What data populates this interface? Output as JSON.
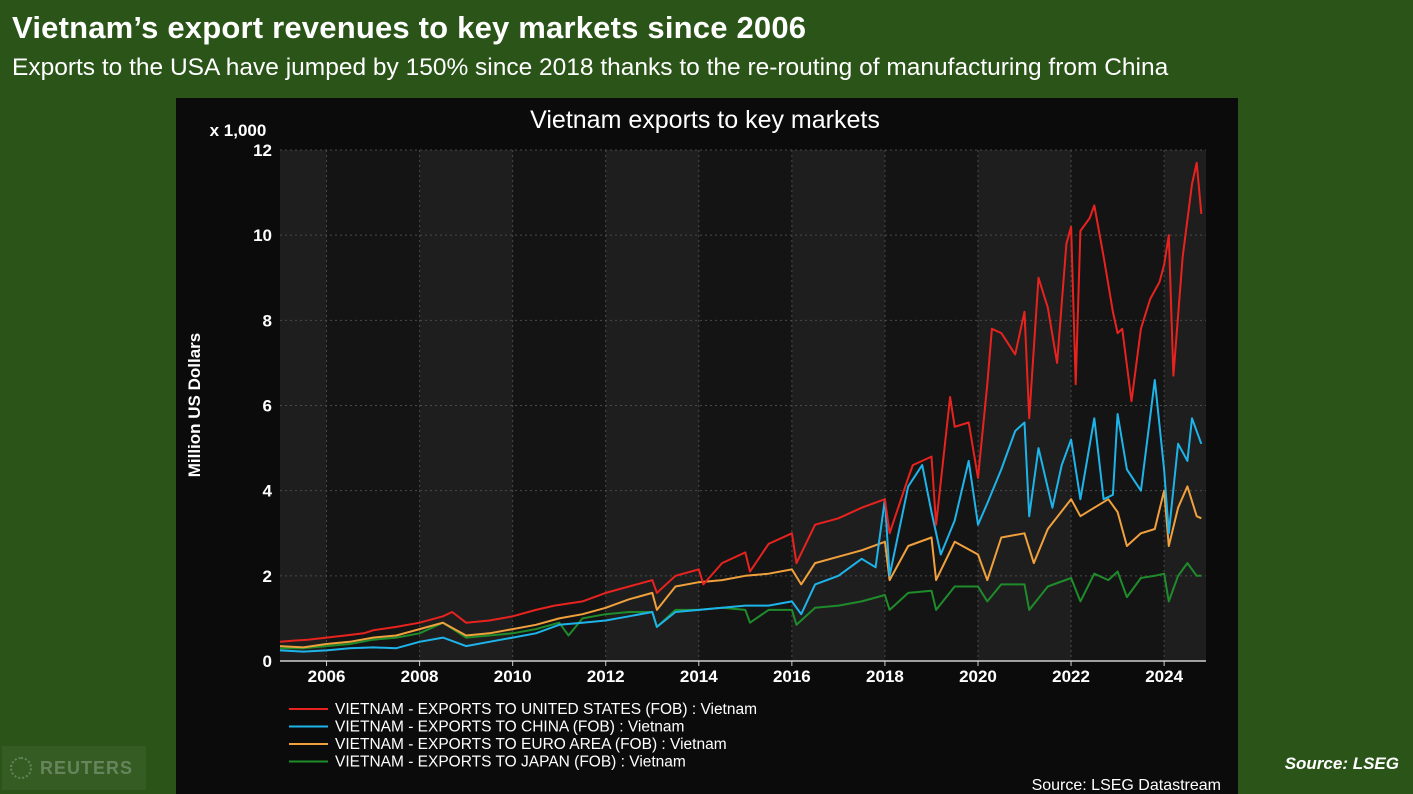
{
  "header": {
    "headline": "Vietnam’s export revenues to key markets since 2006",
    "subline": "Exports to the USA have jumped by 150% since 2018 thanks to the re-routing of manufacturing from China"
  },
  "footer": {
    "watermark": "REUTERS",
    "source": "Source: LSEG"
  },
  "chart_data": {
    "type": "line",
    "title": "Vietnam exports to key markets",
    "ylabel": "Million US Dollars",
    "y_multiplier_label": "x 1,000",
    "xlabel": "",
    "source_note": "Source: LSEG Datastream",
    "xlim": [
      2005.0,
      2024.9
    ],
    "ylim": [
      0,
      12
    ],
    "x_ticks": [
      2006,
      2008,
      2010,
      2012,
      2014,
      2016,
      2018,
      2020,
      2022,
      2024
    ],
    "x_tick_labels": [
      "2006",
      "2008",
      "2010",
      "2012",
      "2014",
      "2016",
      "2018",
      "2020",
      "2022",
      "2024"
    ],
    "y_ticks": [
      0,
      2,
      4,
      6,
      8,
      10,
      12
    ],
    "y_tick_labels": [
      "0",
      "2",
      "4",
      "6",
      "8",
      "10",
      "12"
    ],
    "grid": true,
    "legend_position": "bottom-left",
    "series": [
      {
        "name": "VIETNAM - EXPORTS TO UNITED STATES (FOB) : Vietnam",
        "color": "#e8231f",
        "x": [
          2005.0,
          2005.3,
          2005.6,
          2006.0,
          2006.4,
          2006.8,
          2007.0,
          2007.5,
          2008.0,
          2008.5,
          2008.7,
          2009.0,
          2009.5,
          2010.0,
          2010.5,
          2010.9,
          2011.5,
          2012.0,
          2012.5,
          2013.0,
          2013.1,
          2013.5,
          2014.0,
          2014.1,
          2014.5,
          2015.0,
          2015.1,
          2015.5,
          2016.0,
          2016.1,
          2016.5,
          2017.0,
          2017.5,
          2018.0,
          2018.1,
          2018.5,
          2018.6,
          2019.0,
          2019.1,
          2019.4,
          2019.5,
          2019.8,
          2020.0,
          2020.2,
          2020.3,
          2020.5,
          2020.8,
          2021.0,
          2021.1,
          2021.3,
          2021.5,
          2021.7,
          2021.9,
          2022.0,
          2022.1,
          2022.2,
          2022.4,
          2022.5,
          2022.7,
          2022.9,
          2023.0,
          2023.1,
          2023.3,
          2023.5,
          2023.7,
          2023.9,
          2024.0,
          2024.1,
          2024.2,
          2024.4,
          2024.6,
          2024.7,
          2024.8
        ],
        "values": [
          0.45,
          0.48,
          0.5,
          0.55,
          0.6,
          0.65,
          0.72,
          0.8,
          0.9,
          1.05,
          1.15,
          0.9,
          0.95,
          1.05,
          1.2,
          1.3,
          1.4,
          1.6,
          1.75,
          1.9,
          1.6,
          2.0,
          2.15,
          1.8,
          2.3,
          2.55,
          2.1,
          2.75,
          3.0,
          2.3,
          3.2,
          3.35,
          3.6,
          3.8,
          3.0,
          4.3,
          4.6,
          4.8,
          3.2,
          6.2,
          5.5,
          5.6,
          4.3,
          6.5,
          7.8,
          7.7,
          7.2,
          8.2,
          5.7,
          9.0,
          8.3,
          7.0,
          9.8,
          10.2,
          6.5,
          10.1,
          10.4,
          10.7,
          9.5,
          8.2,
          7.7,
          7.8,
          6.1,
          7.8,
          8.5,
          8.9,
          9.3,
          10.0,
          6.7,
          9.5,
          11.2,
          11.7,
          10.5
        ]
      },
      {
        "name": "VIETNAM - EXPORTS TO CHINA (FOB) : Vietnam",
        "color": "#1eb4ea",
        "x": [
          2005.0,
          2005.5,
          2006.0,
          2006.5,
          2007.0,
          2007.5,
          2008.0,
          2008.5,
          2009.0,
          2009.5,
          2010.0,
          2010.5,
          2011.0,
          2011.5,
          2012.0,
          2012.5,
          2013.0,
          2013.1,
          2013.5,
          2014.0,
          2014.5,
          2015.0,
          2015.5,
          2016.0,
          2016.2,
          2016.5,
          2017.0,
          2017.5,
          2017.8,
          2018.0,
          2018.1,
          2018.5,
          2018.8,
          2019.0,
          2019.2,
          2019.5,
          2019.8,
          2020.0,
          2020.2,
          2020.5,
          2020.8,
          2021.0,
          2021.1,
          2021.3,
          2021.6,
          2021.8,
          2022.0,
          2022.2,
          2022.5,
          2022.7,
          2022.9,
          2023.0,
          2023.2,
          2023.5,
          2023.8,
          2024.0,
          2024.1,
          2024.3,
          2024.5,
          2024.6,
          2024.8
        ],
        "values": [
          0.25,
          0.22,
          0.25,
          0.3,
          0.32,
          0.3,
          0.45,
          0.55,
          0.35,
          0.45,
          0.55,
          0.65,
          0.85,
          0.9,
          0.95,
          1.05,
          1.15,
          0.8,
          1.15,
          1.2,
          1.25,
          1.3,
          1.3,
          1.4,
          1.1,
          1.8,
          2.0,
          2.4,
          2.2,
          3.8,
          2.0,
          4.1,
          4.6,
          3.5,
          2.5,
          3.3,
          4.7,
          3.2,
          3.7,
          4.5,
          5.4,
          5.6,
          3.4,
          5.0,
          3.6,
          4.6,
          5.2,
          3.8,
          5.7,
          3.8,
          3.9,
          5.8,
          4.5,
          4.0,
          6.6,
          4.5,
          3.0,
          5.1,
          4.7,
          5.7,
          5.1
        ]
      },
      {
        "name": "VIETNAM - EXPORTS TO EURO AREA (FOB) : Vietnam",
        "color": "#f0a03c",
        "x": [
          2005.0,
          2005.5,
          2006.0,
          2006.5,
          2007.0,
          2007.5,
          2008.0,
          2008.5,
          2009.0,
          2009.5,
          2010.0,
          2010.5,
          2011.0,
          2011.5,
          2012.0,
          2012.5,
          2013.0,
          2013.1,
          2013.5,
          2014.0,
          2014.5,
          2015.0,
          2015.5,
          2016.0,
          2016.2,
          2016.5,
          2017.0,
          2017.5,
          2018.0,
          2018.1,
          2018.5,
          2019.0,
          2019.1,
          2019.5,
          2020.0,
          2020.2,
          2020.5,
          2021.0,
          2021.2,
          2021.5,
          2022.0,
          2022.2,
          2022.5,
          2022.8,
          2023.0,
          2023.2,
          2023.5,
          2023.8,
          2024.0,
          2024.1,
          2024.3,
          2024.5,
          2024.7,
          2024.8
        ],
        "values": [
          0.35,
          0.32,
          0.4,
          0.45,
          0.55,
          0.6,
          0.75,
          0.9,
          0.6,
          0.65,
          0.75,
          0.85,
          1.0,
          1.1,
          1.25,
          1.45,
          1.6,
          1.2,
          1.75,
          1.85,
          1.9,
          2.0,
          2.05,
          2.15,
          1.8,
          2.3,
          2.45,
          2.6,
          2.8,
          1.9,
          2.7,
          2.9,
          1.9,
          2.8,
          2.5,
          1.9,
          2.9,
          3.0,
          2.3,
          3.1,
          3.8,
          3.4,
          3.6,
          3.8,
          3.5,
          2.7,
          3.0,
          3.1,
          4.0,
          2.7,
          3.6,
          4.1,
          3.4,
          3.35
        ]
      },
      {
        "name": "VIETNAM - EXPORTS TO JAPAN (FOB) : Vietnam",
        "color": "#1e8c2a",
        "x": [
          2005.0,
          2005.5,
          2006.0,
          2006.5,
          2007.0,
          2007.5,
          2008.0,
          2008.5,
          2009.0,
          2009.5,
          2010.0,
          2010.5,
          2011.0,
          2011.2,
          2011.5,
          2012.0,
          2012.5,
          2013.0,
          2013.1,
          2013.5,
          2014.0,
          2014.5,
          2015.0,
          2015.1,
          2015.5,
          2016.0,
          2016.1,
          2016.5,
          2017.0,
          2017.5,
          2018.0,
          2018.1,
          2018.5,
          2019.0,
          2019.1,
          2019.5,
          2020.0,
          2020.2,
          2020.5,
          2021.0,
          2021.1,
          2021.5,
          2022.0,
          2022.2,
          2022.5,
          2022.8,
          2023.0,
          2023.2,
          2023.5,
          2023.8,
          2024.0,
          2024.1,
          2024.3,
          2024.5,
          2024.7,
          2024.8
        ],
        "values": [
          0.3,
          0.3,
          0.35,
          0.4,
          0.5,
          0.55,
          0.65,
          0.9,
          0.55,
          0.6,
          0.65,
          0.75,
          0.9,
          0.6,
          1.0,
          1.1,
          1.15,
          1.15,
          0.8,
          1.2,
          1.2,
          1.25,
          1.2,
          0.9,
          1.2,
          1.2,
          0.85,
          1.25,
          1.3,
          1.4,
          1.55,
          1.2,
          1.6,
          1.65,
          1.2,
          1.75,
          1.75,
          1.4,
          1.8,
          1.8,
          1.2,
          1.75,
          1.95,
          1.4,
          2.05,
          1.9,
          2.1,
          1.5,
          1.95,
          2.0,
          2.05,
          1.4,
          2.0,
          2.3,
          2.0,
          2.0
        ]
      }
    ]
  }
}
